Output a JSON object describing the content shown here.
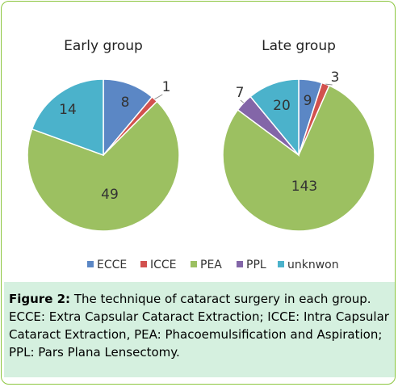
{
  "chart_data": {
    "type": "pie",
    "categories": [
      "ECCE",
      "ICCE",
      "PEA",
      "PPL",
      "unknwon"
    ],
    "colors": [
      "#5b87c5",
      "#d2514e",
      "#9cc061",
      "#8366a8",
      "#4bb2cb"
    ],
    "charts": [
      {
        "title": "Early group",
        "values": [
          8,
          1,
          49,
          0,
          14
        ],
        "labels": [
          "8",
          "1",
          "49",
          "",
          "14"
        ]
      },
      {
        "title": "Late group",
        "values": [
          9,
          3,
          143,
          7,
          20
        ],
        "labels": [
          "9",
          "3",
          "143",
          "7",
          "20"
        ]
      }
    ],
    "legend": {
      "position": "bottom"
    }
  },
  "caption": {
    "label": "Figure 2:",
    "text": " The technique of cataract surgery in each group. ECCE: Extra Capsular Cataract Extraction; ICCE: Intra Capsular Cataract Extraction, PEA: Phacoemulsification and Aspiration; PPL: Pars Plana Lensectomy."
  }
}
